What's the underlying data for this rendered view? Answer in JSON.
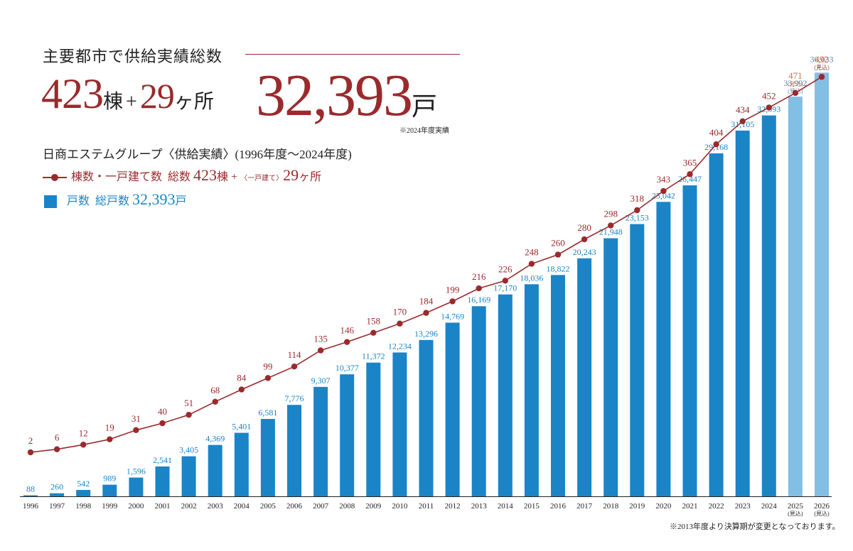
{
  "header": {
    "headline": "主要都市で供給実績総数",
    "buildings_total": "423",
    "buildings_unit": "棟",
    "plus": "+",
    "sites_total": "29",
    "sites_unit": "ヶ所",
    "units_total": "32,393",
    "units_unit": "戸",
    "as_of_note": "※2024年度実績",
    "subtitle": "日商エステムグループ〈供給実績〉(1996年度〜2024年度)"
  },
  "legend": {
    "line_label": "棟数・一戸建て数",
    "line_total_label": "総数",
    "line_total_value": "423",
    "line_total_unit": "棟",
    "line_plus": "+",
    "line_detached_label": "〈一戸建て〉",
    "line_detached_value": "29",
    "line_detached_unit": "ヶ所",
    "bar_label": "戸数",
    "bar_total_label": "総戸数",
    "bar_total_value": "32,393",
    "bar_total_unit": "戸"
  },
  "footnote": "※2013年度より決算期が変更となっております。",
  "chart_data": {
    "type": "bar",
    "categories": [
      "1996",
      "1997",
      "1998",
      "1999",
      "2000",
      "2001",
      "2002",
      "2003",
      "2004",
      "2005",
      "2006",
      "2007",
      "2008",
      "2009",
      "2010",
      "2011",
      "2012",
      "2013",
      "2014",
      "2015",
      "2016",
      "2017",
      "2018",
      "2019",
      "2020",
      "2021",
      "2022",
      "2023",
      "2024",
      "2025",
      "2026"
    ],
    "category_sublabels": [
      "",
      "",
      "",
      "",
      "",
      "",
      "",
      "",
      "",
      "",
      "",
      "",
      "",
      "",
      "",
      "",
      "",
      "",
      "",
      "",
      "",
      "",
      "",
      "",
      "",
      "",
      "",
      "",
      "",
      "(見込)",
      "(見込)"
    ],
    "series": [
      {
        "kind": "bar",
        "values": [
          88,
          260,
          542,
          989,
          1596,
          2541,
          3405,
          4369,
          5401,
          6581,
          7776,
          9307,
          10377,
          11372,
          12234,
          13296,
          14769,
          16169,
          17170,
          18036,
          18822,
          20243,
          21948,
          23153,
          25042,
          26447,
          29168,
          31105,
          32393,
          33992,
          36033
        ],
        "labels": [
          "88",
          "260",
          "542",
          "989",
          "1,596",
          "2,541",
          "3,405",
          "4,369",
          "5,401",
          "6,581",
          "7,776",
          "9,307",
          "10,377",
          "11,372",
          "12,234",
          "13,296",
          "14,769",
          "16,169",
          "17,170",
          "18,036",
          "18,822",
          "20,243",
          "21,948",
          "23,153",
          "25,042",
          "26,447",
          "29,168",
          "31,105",
          "32,393",
          "33,992",
          "36,033"
        ],
        "color": "#1a84c7",
        "forecast_color": "#82bfe3",
        "forecast_from_index": 29
      },
      {
        "kind": "line",
        "values": [
          2,
          6,
          12,
          19,
          31,
          40,
          51,
          68,
          84,
          99,
          114,
          135,
          146,
          158,
          170,
          184,
          199,
          216,
          226,
          248,
          260,
          280,
          298,
          318,
          343,
          365,
          404,
          434,
          452,
          471,
          492
        ],
        "labels": [
          "2",
          "6",
          "12",
          "19",
          "31",
          "40",
          "51",
          "68",
          "84",
          "99",
          "114",
          "135",
          "146",
          "158",
          "170",
          "184",
          "199",
          "216",
          "226",
          "248",
          "260",
          "280",
          "298",
          "318",
          "343",
          "365",
          "404",
          "434",
          "452",
          "471",
          "492"
        ],
        "color": "#9a2a2c",
        "forecast_color": "#c7734f",
        "forecast_from_index": 29
      }
    ],
    "forecast_note": "(見込)",
    "bar_ylim": [
      0,
      37500
    ],
    "line_ylim": [
      -10,
      520
    ],
    "grid": false,
    "legend_position": "top-left"
  }
}
